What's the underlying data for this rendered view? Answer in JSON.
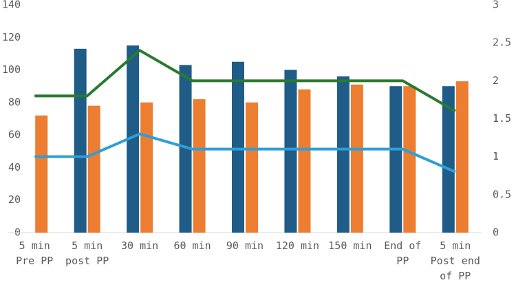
{
  "chart_data": {
    "type": "bar",
    "categories": [
      "5 min Pre PP",
      "5 min post PP",
      "30 min",
      "60 min",
      "90 min",
      "120 min",
      "150 min",
      "End of PP",
      "5 min Post end of PP"
    ],
    "series": [
      {
        "type": "bar",
        "color": "#1f5c87",
        "values": [
          null,
          113,
          115,
          103,
          105,
          100,
          96,
          90,
          90
        ]
      },
      {
        "type": "bar",
        "color": "#ed7d31",
        "values": [
          72,
          78,
          80,
          82,
          80,
          88,
          91,
          90,
          93
        ]
      },
      {
        "type": "line",
        "axis": "y2",
        "color": "#2a7a2e",
        "values": [
          1.8,
          1.8,
          2.4,
          2.0,
          2.0,
          2.0,
          2.0,
          2.0,
          1.6
        ]
      },
      {
        "type": "line",
        "axis": "y2",
        "color": "#2e9fd6",
        "values": [
          1.0,
          1.0,
          1.3,
          1.1,
          1.1,
          1.1,
          1.1,
          1.1,
          0.8
        ]
      }
    ],
    "ylim": [
      0,
      140
    ],
    "yticks": [
      0,
      20,
      40,
      60,
      80,
      100,
      120,
      140
    ],
    "y2lim": [
      0,
      3
    ],
    "y2ticks": [
      0,
      0.5,
      1,
      1.5,
      2,
      2.5,
      3
    ],
    "grid": false
  }
}
